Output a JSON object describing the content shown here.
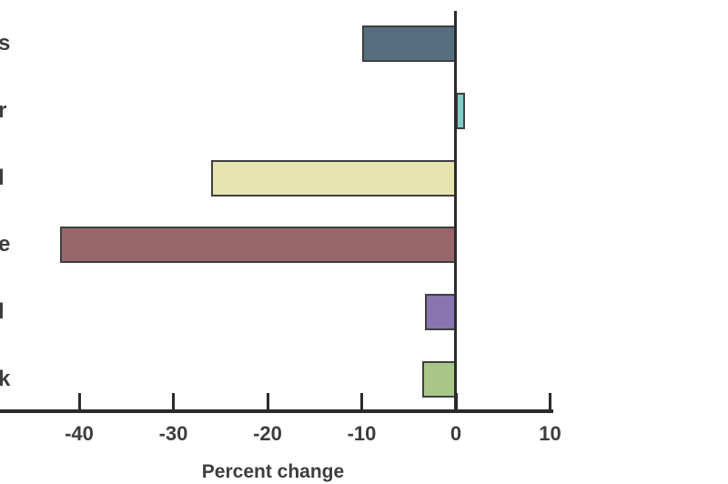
{
  "chart_data": {
    "type": "bar",
    "orientation": "horizontal",
    "title": "",
    "xlabel": "Percent change",
    "ylabel": "",
    "categories_visible_text": [
      "s",
      "r",
      "l",
      "e",
      "l",
      "k"
    ],
    "values": [
      -10,
      1,
      -26,
      -42,
      -3.3,
      -3.6
    ],
    "bar_colors": [
      "#566f80",
      "#7fcbc7",
      "#e6e4af",
      "#996669",
      "#8974af",
      "#a9c789"
    ],
    "bar_border_color": "#3f3f3f",
    "x_ticks": [
      -40,
      -30,
      -20,
      -10,
      0,
      10
    ],
    "x_tick_labels": [
      "-40",
      "-30",
      "-20",
      "-10",
      "0",
      "10"
    ],
    "xlim": [
      -48.4,
      10.2
    ],
    "grid": false,
    "zero_line": true,
    "legend": "none",
    "axis_color": "#2b2b2b",
    "text_color": "#3d3d3d",
    "background_color": "#ffffff"
  }
}
